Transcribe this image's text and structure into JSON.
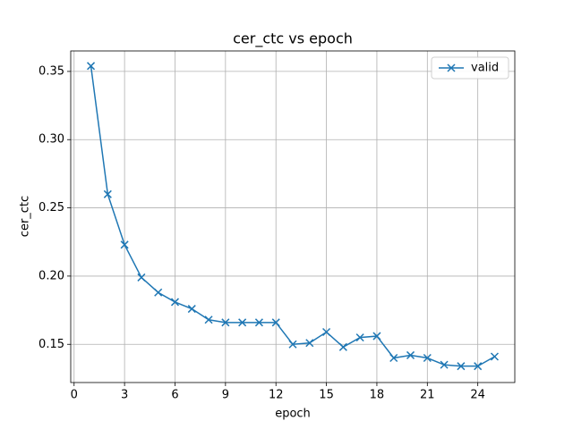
{
  "chart_data": {
    "type": "line",
    "title": "cer_ctc vs epoch",
    "x_label": "epoch",
    "y_label": "cer_ctc",
    "x": [
      1,
      2,
      3,
      4,
      5,
      6,
      7,
      8,
      9,
      10,
      11,
      12,
      13,
      14,
      15,
      16,
      17,
      18,
      19,
      20,
      21,
      22,
      23,
      24,
      25
    ],
    "series": [
      {
        "name": "valid",
        "color": "#1f77b4",
        "values": [
          0.354,
          0.26,
          0.223,
          0.199,
          0.188,
          0.181,
          0.176,
          0.168,
          0.166,
          0.166,
          0.166,
          0.166,
          0.15,
          0.151,
          0.159,
          0.148,
          0.155,
          0.156,
          0.14,
          0.142,
          0.14,
          0.135,
          0.134,
          0.134,
          0.141
        ]
      }
    ],
    "xlim": [
      -0.2,
      26.2
    ],
    "xticks": [
      0,
      3,
      6,
      9,
      12,
      15,
      18,
      21,
      24
    ],
    "ylim": [
      0.122,
      0.365
    ],
    "yticks": [
      0.15,
      {
        "value": 0.2,
        "label": "0.20"
      },
      0.25,
      {
        "value": 0.3,
        "label": "0.30"
      },
      0.35
    ],
    "grid": true,
    "legend": "upper right",
    "marker": "x"
  }
}
